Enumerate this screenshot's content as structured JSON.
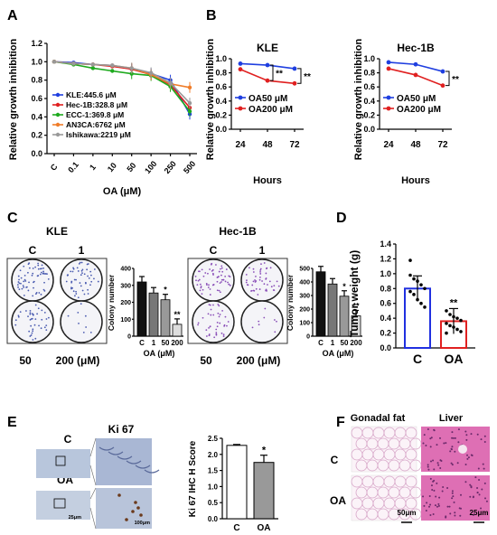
{
  "panel_letters": [
    "A",
    "B",
    "C",
    "D",
    "E",
    "F"
  ],
  "panelA": {
    "ylabel": "Relative growth inhibition",
    "xlabel": "OA (μM)",
    "xticks": [
      "C",
      "0.1",
      "1",
      "10",
      "50",
      "100",
      "250",
      "500"
    ],
    "yticks": [
      "0.0",
      "0.2",
      "0.4",
      "0.6",
      "0.8",
      "1.0",
      "1.2"
    ],
    "legend": [
      "KLE:445.6 μM",
      "Hec-1B:328.8 μM",
      "ECC-1:369.8 μM",
      "AN3CA:6762 μM",
      "Ishikawa:2219 μM"
    ]
  },
  "panelB": {
    "ylabel": "Relative growth inhibition",
    "xlabel": "Hours",
    "xticks": [
      "24",
      "48",
      "72"
    ],
    "yticks": [
      "0.0",
      "0.2",
      "0.4",
      "0.6",
      "0.8",
      "1.0"
    ],
    "titles": [
      "KLE",
      "Hec-1B"
    ],
    "legend": [
      "OA50 μM",
      "OA200 μM"
    ],
    "sig": "**"
  },
  "panelC": {
    "titles": [
      "KLE",
      "Hec-1B"
    ],
    "dish_top_labels": [
      "C",
      "1"
    ],
    "dish_bottom_labels": [
      "50",
      "200 (μM)"
    ],
    "bar_ylabel": "Colony number",
    "bar_xlabel": "OA (μM)",
    "bar_xticks": [
      "C",
      "1",
      "50",
      "200"
    ],
    "kle_yticks": [
      "0",
      "100",
      "200",
      "300",
      "400"
    ],
    "hec_yticks": [
      "0",
      "100",
      "200",
      "300",
      "400",
      "500"
    ],
    "sig1": "*",
    "sig2": "**"
  },
  "panelD": {
    "ylabel": "Tumor weight (g)",
    "xticks": [
      "C",
      "OA"
    ],
    "yticks": [
      "0.0",
      "0.2",
      "0.4",
      "0.6",
      "0.8",
      "1.0",
      "1.2",
      "1.4"
    ],
    "sig": "**"
  },
  "panelE": {
    "title": "Ki 67",
    "row_labels": [
      "C",
      "OA"
    ],
    "scale_small": "25μm",
    "scale_big": "100μm",
    "ylabel": "Ki 67 IHC H Score",
    "xticks": [
      "C",
      "OA"
    ],
    "yticks": [
      "0.0",
      "0.5",
      "1.0",
      "1.5",
      "2.0",
      "2.5"
    ],
    "sig": "*"
  },
  "panelF": {
    "col_titles": [
      "Gonadal fat",
      "Liver"
    ],
    "row_labels": [
      "C",
      "OA"
    ],
    "scale_fat": "50μm",
    "scale_liver": "25μm"
  },
  "chart_data": [
    {
      "type": "line",
      "panel": "A",
      "x": [
        "C",
        "0.1",
        "1",
        "10",
        "50",
        "100",
        "250",
        "500"
      ],
      "ylim": [
        0,
        1.2
      ],
      "series": [
        {
          "name": "KLE:445.6 μM",
          "color": "#1f3fe0",
          "values": [
            1.0,
            0.99,
            0.97,
            0.96,
            0.92,
            0.87,
            0.8,
            0.43
          ]
        },
        {
          "name": "Hec-1B:328.8 μM",
          "color": "#e02020",
          "values": [
            1.0,
            0.98,
            0.97,
            0.95,
            0.92,
            0.86,
            0.75,
            0.5
          ]
        },
        {
          "name": "ECC-1:369.8 μM",
          "color": "#1faa1f",
          "values": [
            1.0,
            0.97,
            0.93,
            0.9,
            0.87,
            0.85,
            0.73,
            0.46
          ]
        },
        {
          "name": "AN3CA:6762 μM",
          "color": "#f07d2a",
          "values": [
            1.0,
            0.98,
            0.97,
            0.96,
            0.93,
            0.86,
            0.76,
            0.72
          ]
        },
        {
          "name": "Ishikawa:2219 μM",
          "color": "#999999",
          "values": [
            1.0,
            0.98,
            0.97,
            0.96,
            0.93,
            0.88,
            0.77,
            0.55
          ]
        }
      ]
    },
    {
      "type": "line",
      "panel": "B",
      "title": "KLE",
      "x": [
        "24",
        "48",
        "72"
      ],
      "ylim": [
        0,
        1.0
      ],
      "series": [
        {
          "name": "OA50 μM",
          "color": "#1f3fe0",
          "values": [
            0.93,
            0.91,
            0.86
          ]
        },
        {
          "name": "OA200 μM",
          "color": "#e02020",
          "values": [
            0.85,
            0.69,
            0.65
          ]
        }
      ]
    },
    {
      "type": "line",
      "panel": "B",
      "title": "Hec-1B",
      "x": [
        "24",
        "48",
        "72"
      ],
      "ylim": [
        0,
        1.0
      ],
      "series": [
        {
          "name": "OA50 μM",
          "color": "#1f3fe0",
          "values": [
            0.95,
            0.92,
            0.82
          ]
        },
        {
          "name": "OA200 μM",
          "color": "#e02020",
          "values": [
            0.86,
            0.77,
            0.62
          ]
        }
      ]
    },
    {
      "type": "bar",
      "panel": "C",
      "title": "KLE",
      "categories": [
        "C",
        "1",
        "50",
        "200"
      ],
      "values": [
        320,
        255,
        215,
        70
      ],
      "ylim": [
        0,
        400
      ]
    },
    {
      "type": "bar",
      "panel": "C",
      "title": "Hec-1B",
      "categories": [
        "C",
        "1",
        "50",
        "200"
      ],
      "values": [
        475,
        385,
        295,
        150
      ],
      "ylim": [
        0,
        500
      ]
    },
    {
      "type": "bar",
      "panel": "D",
      "categories": [
        "C",
        "OA"
      ],
      "values": [
        0.8,
        0.36
      ],
      "ylim": [
        0,
        1.4
      ],
      "points": {
        "C": [
          0.98,
          0.93,
          0.9,
          0.85,
          0.8,
          0.76,
          0.72,
          0.65,
          0.6,
          0.55,
          1.18
        ],
        "OA": [
          0.5,
          0.45,
          0.42,
          0.4,
          0.37,
          0.33,
          0.3,
          0.28,
          0.25,
          0.22,
          0.2
        ]
      }
    },
    {
      "type": "bar",
      "panel": "E",
      "categories": [
        "C",
        "OA"
      ],
      "values": [
        2.28,
        1.75
      ],
      "ylim": [
        0,
        2.5
      ]
    }
  ]
}
